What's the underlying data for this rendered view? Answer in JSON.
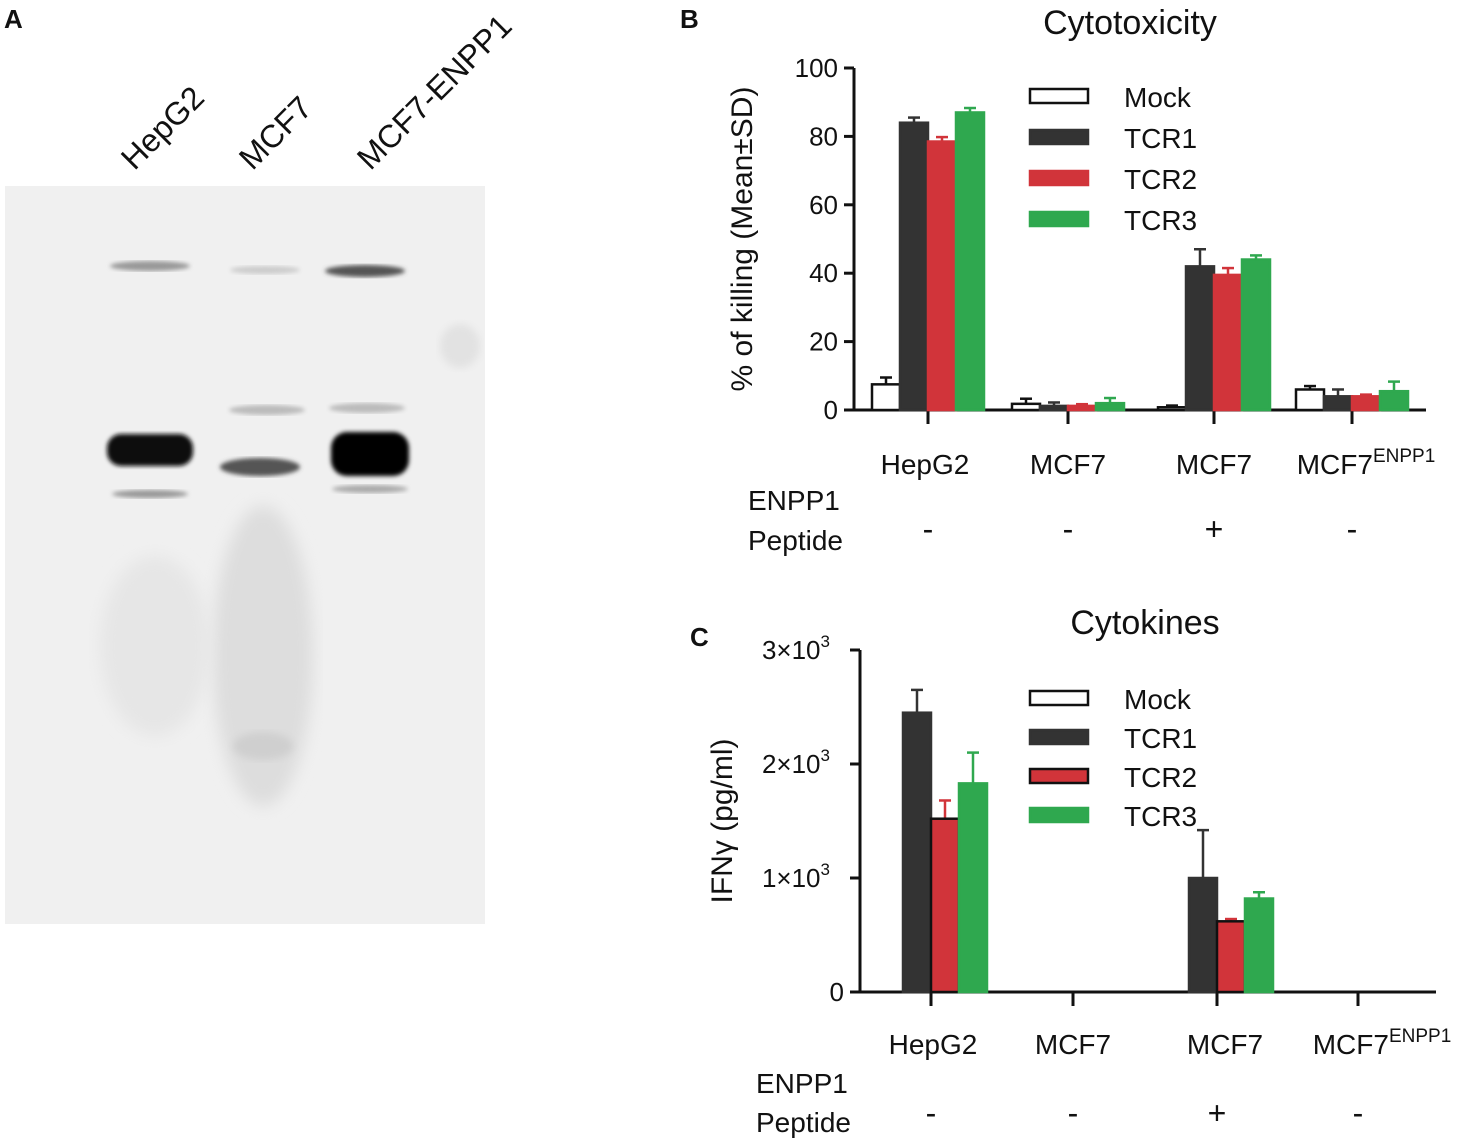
{
  "panels": {
    "a": {
      "letter": "A",
      "lanes": [
        "HepG2",
        "MCF7",
        "MCF7-ENPP1"
      ]
    },
    "b": {
      "letter": "B"
    },
    "c": {
      "letter": "C"
    }
  },
  "colors": {
    "Mock": "#ffffff",
    "TCR1": "#333333",
    "TCR2": "#d1343a",
    "TCR3": "#2fa84f"
  },
  "chart_data": [
    {
      "type": "bar",
      "title": "Cytotoxicity",
      "ylabel": "% of killing (Mean±SD)",
      "ylim": [
        0,
        100
      ],
      "yticks": [
        "0",
        "20",
        "40",
        "60",
        "80",
        "100"
      ],
      "categories": [
        "HepG2",
        "MCF7",
        "MCF7",
        "MCF7"
      ],
      "category_superscripts": [
        "",
        "",
        "",
        "ENPP1"
      ],
      "condition_label": [
        "ENPP1",
        "Peptide"
      ],
      "peptide": [
        "-",
        "-",
        "+",
        "-"
      ],
      "legend": [
        "Mock",
        "TCR1",
        "TCR2",
        "TCR3"
      ],
      "series": [
        {
          "name": "Mock",
          "values": [
            7.5,
            1.8,
            0.8,
            6.0
          ],
          "errors": [
            2,
            1.5,
            0.5,
            1
          ]
        },
        {
          "name": "TCR1",
          "values": [
            84,
            1.2,
            42,
            4.0
          ],
          "errors": [
            1.5,
            1,
            5,
            2
          ]
        },
        {
          "name": "TCR2",
          "values": [
            78.5,
            1.2,
            39.5,
            4.0
          ],
          "errors": [
            1.3,
            0.5,
            2,
            0.5
          ]
        },
        {
          "name": "TCR3",
          "values": [
            87,
            2.0,
            44,
            5.5
          ],
          "errors": [
            1.3,
            1.5,
            1.2,
            2.8
          ]
        }
      ]
    },
    {
      "type": "bar",
      "title": "Cytokines",
      "ylabel": "IFNγ (pg/ml)",
      "ylim": [
        0,
        3000
      ],
      "yticks": [
        "0",
        "1×10",
        "2×10",
        "3×10"
      ],
      "ytick_exponents": [
        "",
        "3",
        "3",
        "3"
      ],
      "categories": [
        "HepG2",
        "MCF7",
        "MCF7",
        "MCF7"
      ],
      "category_superscripts": [
        "",
        "",
        "",
        "ENPP1"
      ],
      "condition_label": [
        "ENPP1",
        "Peptide"
      ],
      "peptide": [
        "-",
        "-",
        "+",
        "-"
      ],
      "legend": [
        "Mock",
        "TCR1",
        "TCR2",
        "TCR3"
      ],
      "series": [
        {
          "name": "Mock",
          "values": [
            0,
            0,
            0,
            0
          ],
          "errors": [
            0,
            0,
            0,
            0
          ]
        },
        {
          "name": "TCR1",
          "values": [
            2450,
            0,
            1000,
            0
          ],
          "errors": [
            200,
            0,
            420,
            0
          ]
        },
        {
          "name": "TCR2",
          "values": [
            1520,
            0,
            620,
            0
          ],
          "errors": [
            160,
            0,
            20,
            0
          ]
        },
        {
          "name": "TCR3",
          "values": [
            1830,
            0,
            820,
            0
          ],
          "errors": [
            270,
            0,
            55,
            0
          ]
        }
      ]
    }
  ]
}
